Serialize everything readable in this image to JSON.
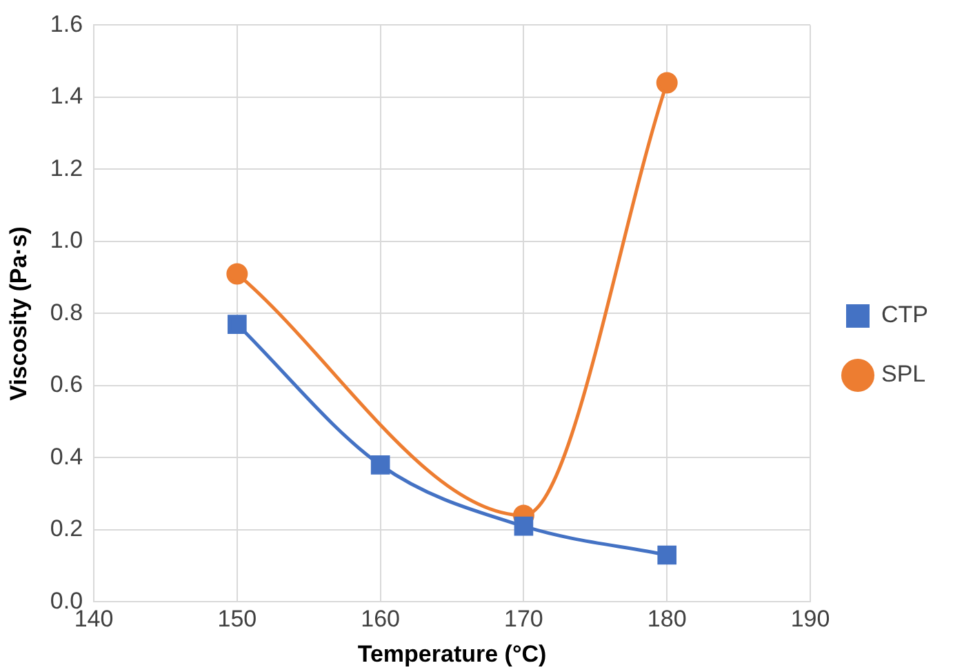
{
  "chart_data": {
    "type": "line",
    "xlabel": "Temperature (°C)",
    "ylabel": "Viscosity (Pa·s)",
    "xlim": [
      140,
      190
    ],
    "xticks": [
      140,
      150,
      160,
      170,
      180,
      190
    ],
    "ylim": [
      0,
      1.6
    ],
    "yticks": [
      {
        "value": 0,
        "label": "0.0"
      },
      {
        "value": 0.2,
        "label": "0.2"
      },
      {
        "value": 0.4,
        "label": "0.4"
      },
      {
        "value": 0.6,
        "label": "0.6"
      },
      {
        "value": 0.8,
        "label": "0.8"
      },
      {
        "value": 1,
        "label": "1.0"
      },
      {
        "value": 1.2,
        "label": "1.2"
      },
      {
        "value": 1.4,
        "label": "1.4"
      },
      {
        "value": 1.6,
        "label": "1.6"
      }
    ],
    "grid": true,
    "legend": "right",
    "line_style": "solid",
    "series": [
      {
        "name": "CTP",
        "color": "#4472c4",
        "marker": "square",
        "x": [
          150,
          160,
          170,
          180
        ],
        "values": [
          0.77,
          0.38,
          0.21,
          0.13
        ]
      },
      {
        "name": "SPL",
        "color": "#ed7d31",
        "marker": "circle",
        "x": [
          150,
          170,
          180
        ],
        "values": [
          0.91,
          0.24,
          1.44
        ]
      }
    ]
  }
}
